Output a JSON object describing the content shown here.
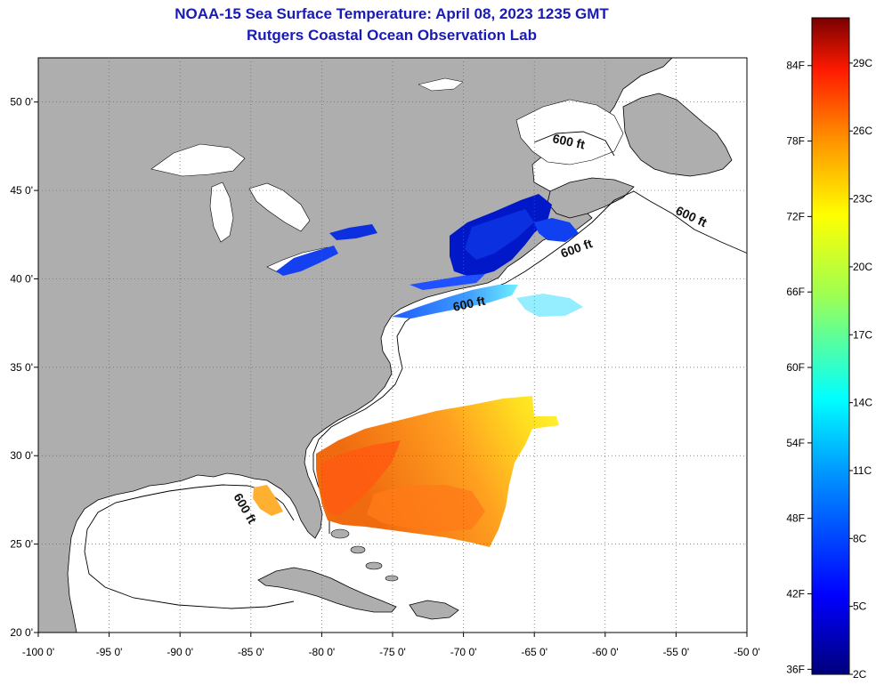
{
  "header": {
    "title": "NOAA-15 Sea Surface Temperature:  April 08, 2023 1235 GMT",
    "subtitle": "Rutgers Coastal Ocean Observation Lab"
  },
  "axes": {
    "x_ticks": [
      "-100 0'",
      "-95 0'",
      "-90 0'",
      "-85 0'",
      "-80 0'",
      "-75 0'",
      "-70 0'",
      "-65 0'",
      "-60 0'",
      "-55 0'",
      "-50 0'"
    ],
    "y_ticks": [
      "20 0'",
      "25 0'",
      "30 0'",
      "35 0'",
      "40 0'",
      "45 0'",
      "50 0'"
    ],
    "lon_range": [
      -100,
      -50
    ],
    "lat_range": [
      20,
      52.5
    ],
    "grid": "dotted"
  },
  "isobath_labels": [
    "600 ft",
    "600 ft",
    "600 ft",
    "600 ft",
    "600 ft"
  ],
  "colorbar": {
    "fahrenheit_ticks": [
      "84F",
      "78F",
      "72F",
      "66F",
      "60F",
      "54F",
      "48F",
      "42F",
      "36F"
    ],
    "celsius_ticks": [
      "29C",
      "26C",
      "23C",
      "20C",
      "17C",
      "14C",
      "11C",
      "8C",
      "5C",
      "2C"
    ],
    "range_c": [
      2,
      31
    ]
  },
  "colors": {
    "land": "#aeaeae",
    "ocean": "#ffffff",
    "title": "#1a1ab4"
  }
}
